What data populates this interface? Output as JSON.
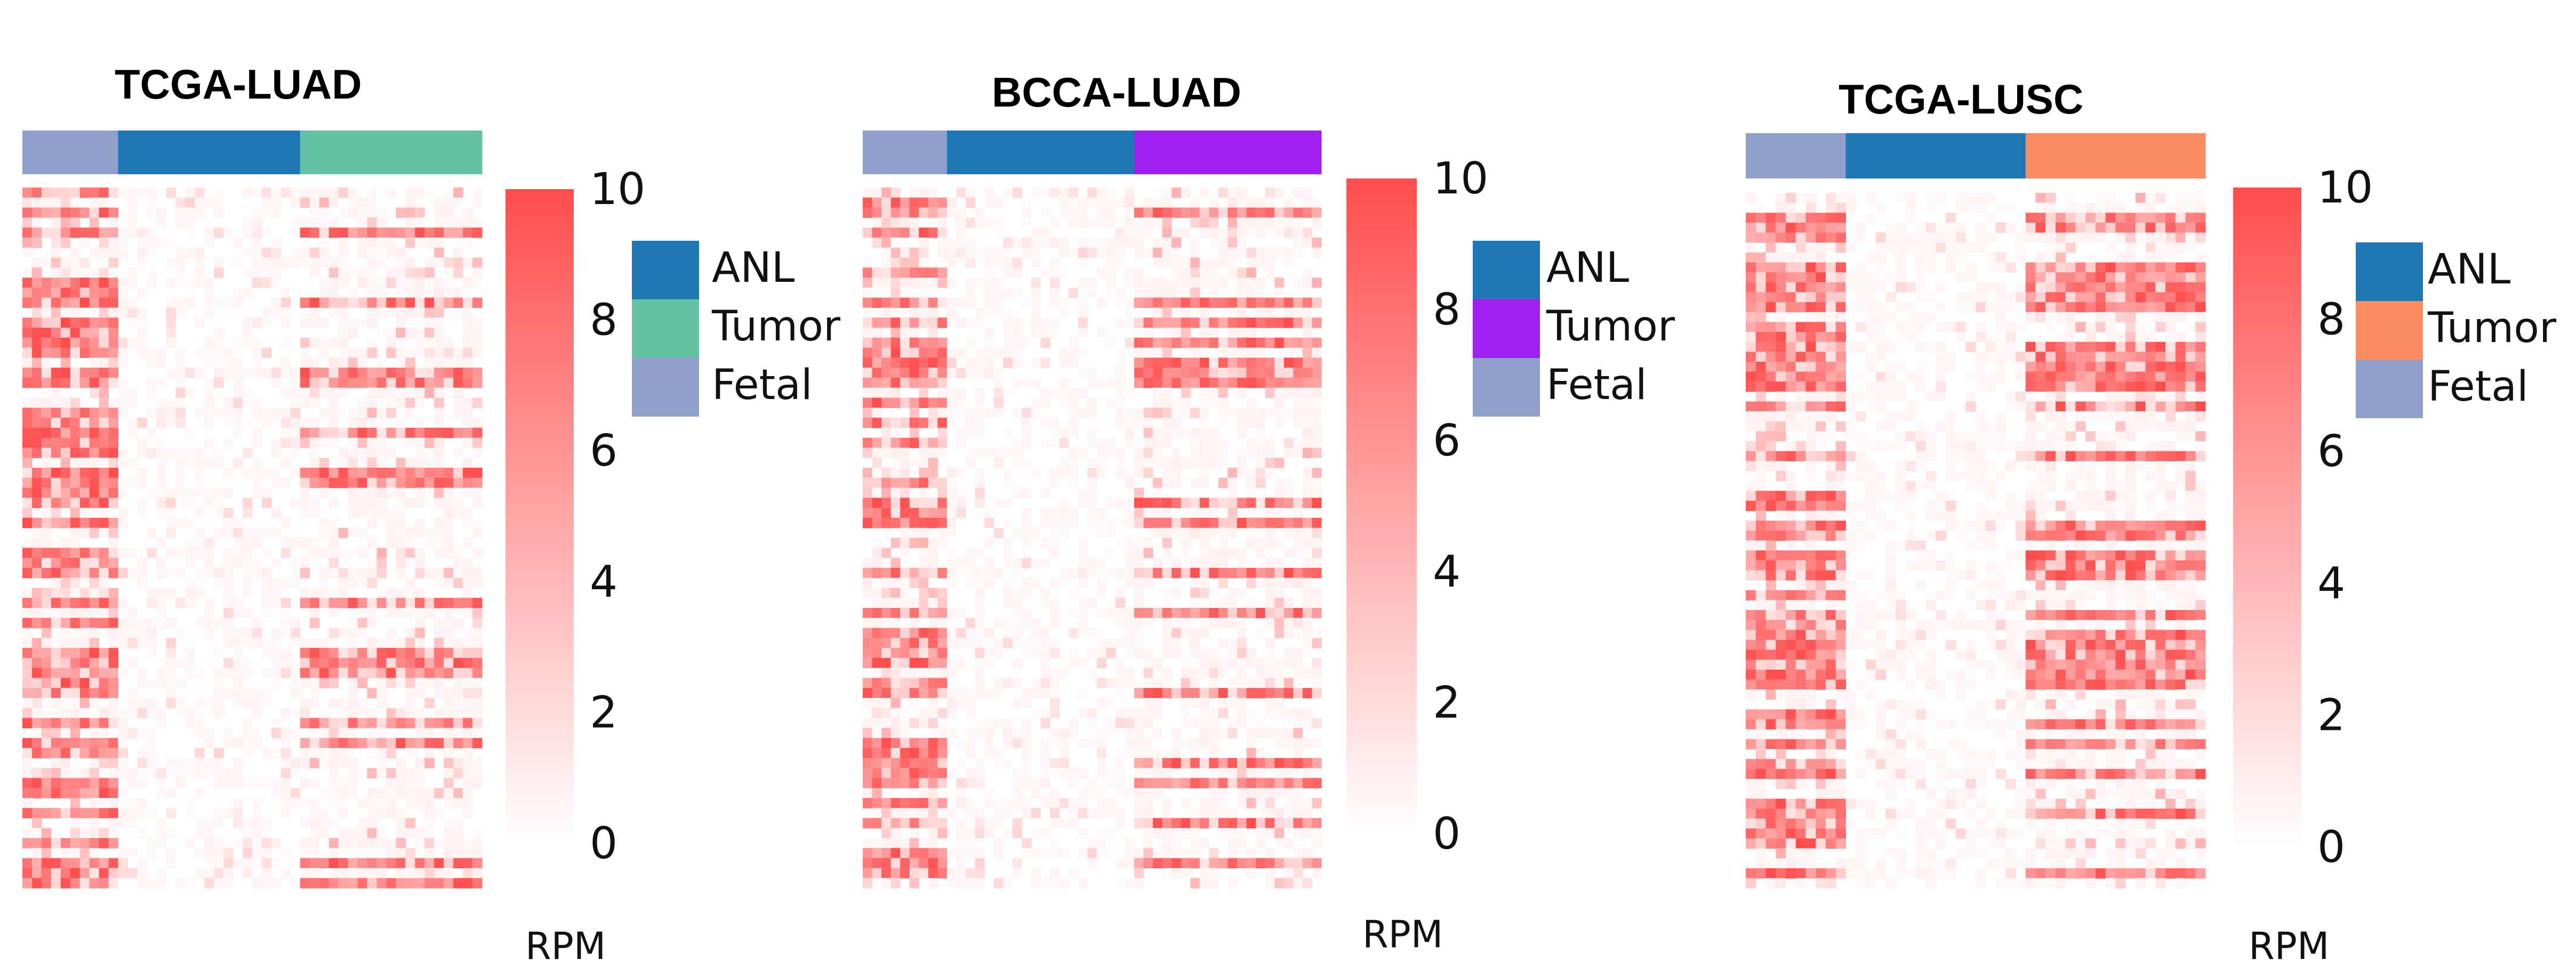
{
  "chart_data": [
    {
      "type": "heatmap",
      "title": "TCGA-LUAD",
      "groups": [
        {
          "name": "Fetal",
          "color": "#8fa0cb",
          "columns": 10
        },
        {
          "name": "ANL",
          "color": "#1f77b4",
          "columns": 19
        },
        {
          "name": "Tumor",
          "color": "#66c2a5",
          "columns": 19
        }
      ],
      "legend": [
        {
          "name": "ANL",
          "color": "#1f77b4"
        },
        {
          "name": "Tumor",
          "color": "#66c2a5"
        },
        {
          "name": "Fetal",
          "color": "#8fa0cb"
        }
      ],
      "rows": 70,
      "color_scale": {
        "label": "RPM",
        "min": 0,
        "max": 10,
        "ticks": [
          0,
          2,
          4,
          6,
          8,
          10
        ],
        "low_color": "#ffffff",
        "high_color": "#ff4d4d"
      },
      "intensity_profile": {
        "Fetal": 0.62,
        "ANL": 0.05,
        "Tumor": 0.22
      }
    },
    {
      "type": "heatmap",
      "title": "BCCA-LUAD",
      "groups": [
        {
          "name": "Fetal",
          "color": "#8fa0cb",
          "columns": 9
        },
        {
          "name": "ANL",
          "color": "#1f77b4",
          "columns": 20
        },
        {
          "name": "Tumor",
          "color": "#a020f0",
          "columns": 20
        }
      ],
      "legend": [
        {
          "name": "ANL",
          "color": "#1f77b4"
        },
        {
          "name": "Tumor",
          "color": "#a020f0"
        },
        {
          "name": "Fetal",
          "color": "#8fa0cb"
        }
      ],
      "rows": 70,
      "color_scale": {
        "label": "RPM",
        "min": 0,
        "max": 10,
        "ticks": [
          0,
          2,
          4,
          6,
          8,
          10
        ],
        "low_color": "#ffffff",
        "high_color": "#ff4d4d"
      },
      "intensity_profile": {
        "Fetal": 0.65,
        "ANL": 0.06,
        "Tumor": 0.25
      }
    },
    {
      "type": "heatmap",
      "title": "TCGA-LUSC",
      "groups": [
        {
          "name": "Fetal",
          "color": "#8fa0cb",
          "columns": 10
        },
        {
          "name": "ANL",
          "color": "#1f77b4",
          "columns": 18
        },
        {
          "name": "Tumor",
          "color": "#fc8d62",
          "columns": 18
        }
      ],
      "legend": [
        {
          "name": "ANL",
          "color": "#1f77b4"
        },
        {
          "name": "Tumor",
          "color": "#fc8d62"
        },
        {
          "name": "Fetal",
          "color": "#8fa0cb"
        }
      ],
      "rows": 70,
      "color_scale": {
        "label": "RPM",
        "min": 0,
        "max": 10,
        "ticks": [
          0,
          2,
          4,
          6,
          8,
          10
        ],
        "low_color": "#ffffff",
        "high_color": "#ff4d4d"
      },
      "intensity_profile": {
        "Fetal": 0.6,
        "ANL": 0.05,
        "Tumor": 0.35
      }
    }
  ]
}
